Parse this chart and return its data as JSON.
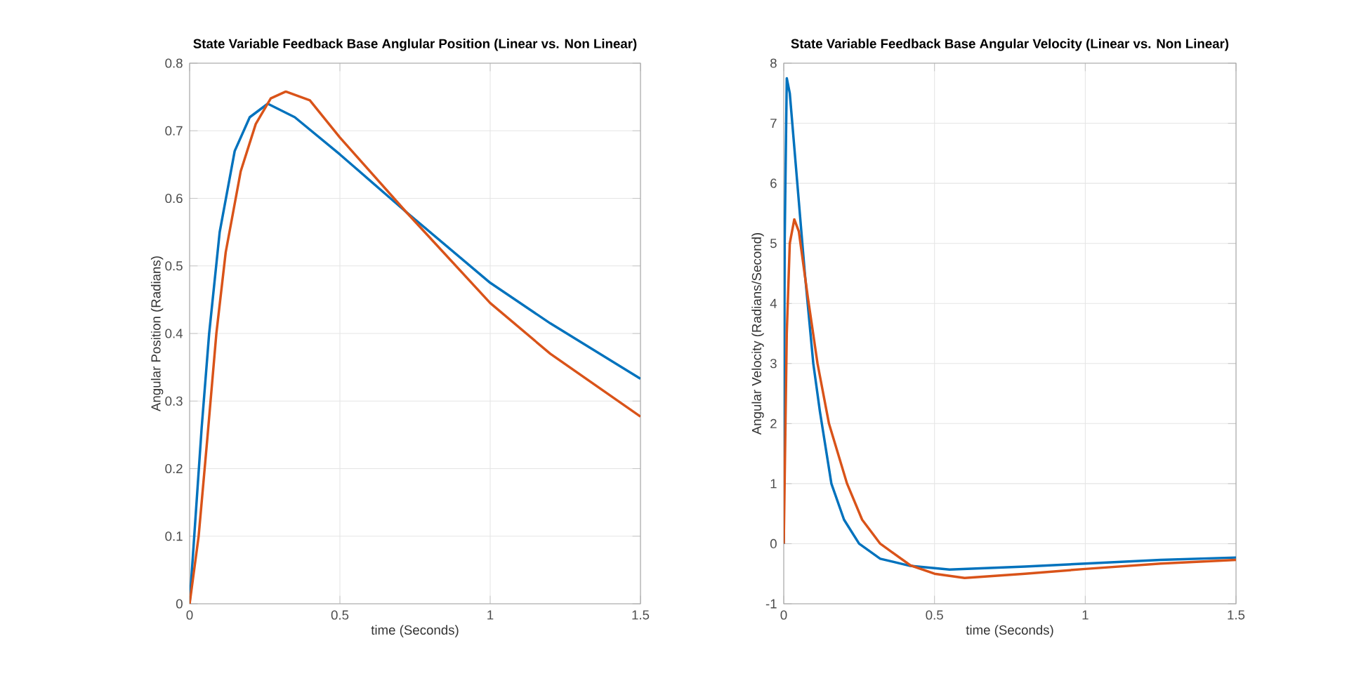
{
  "chart_data": [
    {
      "type": "line",
      "title": "State Variable Feedback Base Anglular Position (Linear vs. Non Linear)",
      "xlabel": "time (Seconds)",
      "ylabel": "Angular Position (Radians)",
      "xlim": [
        0,
        1.5
      ],
      "ylim": [
        0,
        0.8
      ],
      "xticks": [
        0,
        0.5,
        1,
        1.5
      ],
      "yticks": [
        0,
        0.1,
        0.2,
        0.3,
        0.4,
        0.5,
        0.6,
        0.7,
        0.8
      ],
      "grid": true,
      "marker": "none",
      "line_style": "solid",
      "series": [
        {
          "color": "#0072bd",
          "x": [
            0,
            0.02,
            0.04,
            0.065,
            0.1,
            0.15,
            0.2,
            0.26,
            0.35,
            0.5,
            0.72,
            1.0,
            1.2,
            1.5
          ],
          "values": [
            0,
            0.13,
            0.26,
            0.4,
            0.55,
            0.67,
            0.72,
            0.74,
            0.72,
            0.665,
            0.58,
            0.475,
            0.415,
            0.333
          ]
        },
        {
          "color": "#d95319",
          "x": [
            0,
            0.03,
            0.06,
            0.089,
            0.12,
            0.17,
            0.22,
            0.27,
            0.32,
            0.4,
            0.5,
            0.72,
            1.0,
            1.2,
            1.5
          ],
          "values": [
            0,
            0.1,
            0.25,
            0.4,
            0.52,
            0.64,
            0.71,
            0.748,
            0.758,
            0.745,
            0.69,
            0.58,
            0.445,
            0.37,
            0.277
          ]
        }
      ]
    },
    {
      "type": "line",
      "title": "State Variable Feedback Base Angular Velocity (Linear vs. Non Linear)",
      "xlabel": "time (Seconds)",
      "ylabel": "Angular Velocity (Radians/Second)",
      "xlim": [
        0,
        1.5
      ],
      "ylim": [
        -1,
        8
      ],
      "xticks": [
        0,
        0.5,
        1,
        1.5
      ],
      "yticks": [
        -1,
        0,
        1,
        2,
        3,
        4,
        5,
        6,
        7,
        8
      ],
      "grid": true,
      "marker": "none",
      "line_style": "solid",
      "series": [
        {
          "color": "#0072bd",
          "x": [
            0,
            0.003,
            0.01,
            0.02,
            0.04,
            0.07,
            0.098,
            0.12,
            0.158,
            0.2,
            0.25,
            0.32,
            0.42,
            0.55,
            0.8,
            1.0,
            1.25,
            1.5
          ],
          "values": [
            0,
            5,
            7.75,
            7.5,
            6.3,
            4.5,
            3,
            2.2,
            1,
            0.4,
            0,
            -0.25,
            -0.37,
            -0.43,
            -0.38,
            -0.33,
            -0.27,
            -0.23
          ]
        },
        {
          "color": "#d95319",
          "x": [
            0,
            0.01,
            0.02,
            0.035,
            0.05,
            0.08,
            0.112,
            0.15,
            0.21,
            0.26,
            0.32,
            0.42,
            0.5,
            0.6,
            0.8,
            1.0,
            1.25,
            1.5
          ],
          "values": [
            0,
            3.5,
            5,
            5.4,
            5.2,
            4.1,
            3,
            2,
            1,
            0.4,
            0,
            -0.36,
            -0.5,
            -0.57,
            -0.5,
            -0.42,
            -0.33,
            -0.27
          ]
        }
      ]
    }
  ]
}
